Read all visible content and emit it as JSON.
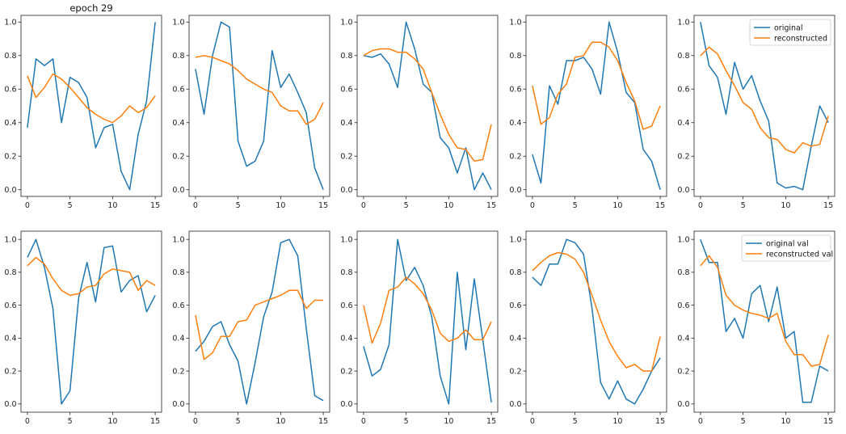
{
  "figure_title": "epoch 29",
  "colors": {
    "original": "#1f77b4",
    "reconstructed": "#ff7f0e"
  },
  "chart_data": [
    {
      "type": "line",
      "title": "epoch 29",
      "x": [
        0,
        1,
        2,
        3,
        4,
        5,
        6,
        7,
        8,
        9,
        10,
        11,
        12,
        13,
        14,
        15
      ],
      "xticks": [
        0,
        5,
        10,
        15
      ],
      "ylim": [
        -0.04,
        1.04
      ],
      "yticks": [
        "0.0",
        "0.2",
        "0.4",
        "0.6",
        "0.8",
        "1.0"
      ],
      "series": [
        {
          "name": "original",
          "values": [
            0.37,
            0.78,
            0.74,
            0.78,
            0.4,
            0.67,
            0.64,
            0.55,
            0.25,
            0.37,
            0.39,
            0.11,
            0.0,
            0.33,
            0.53,
            1.0
          ]
        },
        {
          "name": "reconstructed",
          "values": [
            0.68,
            0.55,
            0.61,
            0.69,
            0.66,
            0.61,
            0.55,
            0.49,
            0.45,
            0.42,
            0.4,
            0.44,
            0.5,
            0.46,
            0.49,
            0.56
          ]
        }
      ]
    },
    {
      "type": "line",
      "x": [
        0,
        1,
        2,
        3,
        4,
        5,
        6,
        7,
        8,
        9,
        10,
        11,
        12,
        13,
        14,
        15
      ],
      "xticks": [
        0,
        5,
        10,
        15
      ],
      "ylim": [
        -0.04,
        1.04
      ],
      "yticks": [
        "0.0",
        "0.2",
        "0.4",
        "0.6",
        "0.8",
        "1.0"
      ],
      "series": [
        {
          "name": "original",
          "values": [
            0.72,
            0.45,
            0.8,
            1.0,
            0.97,
            0.29,
            0.14,
            0.17,
            0.29,
            0.83,
            0.61,
            0.69,
            0.58,
            0.46,
            0.13,
            0.0
          ]
        },
        {
          "name": "reconstructed",
          "values": [
            0.79,
            0.8,
            0.79,
            0.77,
            0.75,
            0.71,
            0.66,
            0.63,
            0.6,
            0.58,
            0.5,
            0.47,
            0.47,
            0.39,
            0.42,
            0.52
          ]
        }
      ]
    },
    {
      "type": "line",
      "x": [
        0,
        1,
        2,
        3,
        4,
        5,
        6,
        7,
        8,
        9,
        10,
        11,
        12,
        13,
        14,
        15
      ],
      "xticks": [
        0,
        5,
        10,
        15
      ],
      "ylim": [
        -0.04,
        1.04
      ],
      "yticks": [
        "0.0",
        "0.2",
        "0.4",
        "0.6",
        "0.8",
        "1.0"
      ],
      "series": [
        {
          "name": "original",
          "values": [
            0.8,
            0.79,
            0.81,
            0.75,
            0.61,
            1.0,
            0.84,
            0.63,
            0.58,
            0.31,
            0.25,
            0.1,
            0.25,
            0.0,
            0.1,
            0.0
          ]
        },
        {
          "name": "reconstructed",
          "values": [
            0.8,
            0.83,
            0.84,
            0.84,
            0.82,
            0.82,
            0.78,
            0.72,
            0.58,
            0.45,
            0.33,
            0.25,
            0.24,
            0.17,
            0.18,
            0.39
          ]
        }
      ]
    },
    {
      "type": "line",
      "x": [
        0,
        1,
        2,
        3,
        4,
        5,
        6,
        7,
        8,
        9,
        10,
        11,
        12,
        13,
        14,
        15
      ],
      "xticks": [
        0,
        5,
        10,
        15
      ],
      "ylim": [
        -0.04,
        1.04
      ],
      "yticks": [
        "0.0",
        "0.2",
        "0.4",
        "0.6",
        "0.8",
        "1.0"
      ],
      "series": [
        {
          "name": "original",
          "values": [
            0.21,
            0.04,
            0.62,
            0.51,
            0.77,
            0.77,
            0.79,
            0.72,
            0.57,
            1.0,
            0.82,
            0.58,
            0.52,
            0.24,
            0.17,
            0.0
          ]
        },
        {
          "name": "reconstructed",
          "values": [
            0.62,
            0.39,
            0.43,
            0.57,
            0.63,
            0.79,
            0.8,
            0.88,
            0.88,
            0.85,
            0.77,
            0.64,
            0.53,
            0.36,
            0.38,
            0.5
          ]
        }
      ]
    },
    {
      "type": "line",
      "x": [
        0,
        1,
        2,
        3,
        4,
        5,
        6,
        7,
        8,
        9,
        10,
        11,
        12,
        13,
        14,
        15
      ],
      "xticks": [
        0,
        5,
        10,
        15
      ],
      "ylim": [
        -0.04,
        1.04
      ],
      "yticks": [
        "0.0",
        "0.2",
        "0.4",
        "0.6",
        "0.8",
        "1.0"
      ],
      "legend": "top-right",
      "series": [
        {
          "name": "original",
          "values": [
            1.0,
            0.74,
            0.67,
            0.45,
            0.76,
            0.6,
            0.68,
            0.53,
            0.41,
            0.04,
            0.01,
            0.02,
            0.0,
            0.26,
            0.5,
            0.4
          ]
        },
        {
          "name": "reconstructed",
          "values": [
            0.8,
            0.85,
            0.81,
            0.71,
            0.62,
            0.52,
            0.48,
            0.37,
            0.31,
            0.3,
            0.24,
            0.22,
            0.28,
            0.26,
            0.27,
            0.44
          ]
        }
      ]
    },
    {
      "type": "line",
      "x": [
        0,
        1,
        2,
        3,
        4,
        5,
        6,
        7,
        8,
        9,
        10,
        11,
        12,
        13,
        14,
        15
      ],
      "xticks": [
        0,
        5,
        10,
        15
      ],
      "ylim": [
        -0.05,
        1.05
      ],
      "yticks": [
        "0.0",
        "0.2",
        "0.4",
        "0.6",
        "0.8",
        "1.0"
      ],
      "series": [
        {
          "name": "original",
          "values": [
            0.89,
            1.0,
            0.83,
            0.58,
            0.0,
            0.08,
            0.64,
            0.86,
            0.62,
            0.95,
            0.96,
            0.68,
            0.75,
            0.78,
            0.56,
            0.66
          ]
        },
        {
          "name": "reconstructed",
          "values": [
            0.84,
            0.89,
            0.85,
            0.76,
            0.69,
            0.66,
            0.67,
            0.71,
            0.72,
            0.79,
            0.82,
            0.81,
            0.8,
            0.69,
            0.75,
            0.72
          ]
        }
      ]
    },
    {
      "type": "line",
      "x": [
        0,
        1,
        2,
        3,
        4,
        5,
        6,
        7,
        8,
        9,
        10,
        11,
        12,
        13,
        14,
        15
      ],
      "xticks": [
        0,
        5,
        10,
        15
      ],
      "ylim": [
        -0.05,
        1.05
      ],
      "yticks": [
        "0.0",
        "0.2",
        "0.4",
        "0.6",
        "0.8",
        "1.0"
      ],
      "series": [
        {
          "name": "original",
          "values": [
            0.32,
            0.38,
            0.47,
            0.5,
            0.36,
            0.26,
            0.0,
            0.25,
            0.53,
            0.68,
            0.98,
            1.0,
            0.9,
            0.46,
            0.05,
            0.02
          ]
        },
        {
          "name": "reconstructed",
          "values": [
            0.54,
            0.27,
            0.31,
            0.41,
            0.41,
            0.5,
            0.51,
            0.6,
            0.62,
            0.64,
            0.66,
            0.69,
            0.69,
            0.58,
            0.63,
            0.63
          ]
        }
      ]
    },
    {
      "type": "line",
      "x": [
        0,
        1,
        2,
        3,
        4,
        5,
        6,
        7,
        8,
        9,
        10,
        11,
        12,
        13,
        14,
        15
      ],
      "xticks": [
        0,
        5,
        10,
        15
      ],
      "ylim": [
        -0.05,
        1.05
      ],
      "yticks": [
        "0.0",
        "0.2",
        "0.4",
        "0.6",
        "0.8",
        "1.0"
      ],
      "series": [
        {
          "name": "original",
          "values": [
            0.35,
            0.17,
            0.21,
            0.36,
            1.0,
            0.75,
            0.83,
            0.72,
            0.53,
            0.17,
            0.0,
            0.8,
            0.33,
            0.76,
            0.39,
            0.01
          ]
        },
        {
          "name": "reconstructed",
          "values": [
            0.6,
            0.37,
            0.49,
            0.69,
            0.71,
            0.77,
            0.73,
            0.67,
            0.57,
            0.43,
            0.38,
            0.4,
            0.45,
            0.39,
            0.39,
            0.5
          ]
        }
      ]
    },
    {
      "type": "line",
      "x": [
        0,
        1,
        2,
        3,
        4,
        5,
        6,
        7,
        8,
        9,
        10,
        11,
        12,
        13,
        14,
        15
      ],
      "xticks": [
        0,
        5,
        10,
        15
      ],
      "ylim": [
        -0.05,
        1.05
      ],
      "yticks": [
        "0.0",
        "0.2",
        "0.4",
        "0.6",
        "0.8",
        "1.0"
      ],
      "series": [
        {
          "name": "original",
          "values": [
            0.77,
            0.72,
            0.85,
            0.85,
            1.0,
            0.98,
            0.91,
            0.58,
            0.13,
            0.03,
            0.14,
            0.03,
            0.0,
            0.09,
            0.2,
            0.28
          ]
        },
        {
          "name": "reconstructed",
          "values": [
            0.81,
            0.86,
            0.9,
            0.92,
            0.91,
            0.88,
            0.8,
            0.66,
            0.51,
            0.38,
            0.29,
            0.22,
            0.24,
            0.2,
            0.2,
            0.41
          ]
        }
      ]
    },
    {
      "type": "line",
      "x": [
        0,
        1,
        2,
        3,
        4,
        5,
        6,
        7,
        8,
        9,
        10,
        11,
        12,
        13,
        14,
        15
      ],
      "xticks": [
        0,
        5,
        10,
        15
      ],
      "ylim": [
        -0.05,
        1.05
      ],
      "yticks": [
        "0.0",
        "0.2",
        "0.4",
        "0.6",
        "0.8",
        "1.0"
      ],
      "legend": "top-right",
      "series": [
        {
          "name": "original val",
          "values": [
            1.0,
            0.86,
            0.86,
            0.44,
            0.52,
            0.4,
            0.67,
            0.72,
            0.5,
            0.71,
            0.4,
            0.44,
            0.01,
            0.01,
            0.23,
            0.2
          ]
        },
        {
          "name": "reconstructed val",
          "values": [
            0.84,
            0.9,
            0.83,
            0.66,
            0.6,
            0.57,
            0.55,
            0.54,
            0.52,
            0.55,
            0.38,
            0.3,
            0.3,
            0.23,
            0.24,
            0.42
          ]
        }
      ]
    }
  ]
}
